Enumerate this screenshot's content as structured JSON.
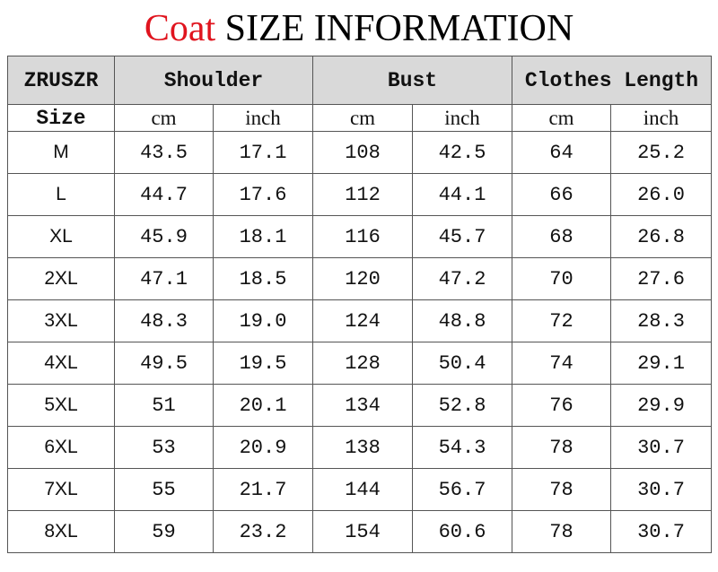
{
  "title": {
    "highlight": "Coat",
    "rest": "SIZE INFORMATION"
  },
  "table": {
    "brand": "ZRUSZR",
    "groups": [
      "Shoulder",
      "Bust",
      "Clothes Length"
    ],
    "size_label": "Size",
    "units": [
      "cm",
      "inch",
      "cm",
      "inch",
      "cm",
      "inch"
    ],
    "rows": [
      [
        "M",
        "43.5",
        "17.1",
        "108",
        "42.5",
        "64",
        "25.2"
      ],
      [
        "L",
        "44.7",
        "17.6",
        "112",
        "44.1",
        "66",
        "26.0"
      ],
      [
        "XL",
        "45.9",
        "18.1",
        "116",
        "45.7",
        "68",
        "26.8"
      ],
      [
        "2XL",
        "47.1",
        "18.5",
        "120",
        "47.2",
        "70",
        "27.6"
      ],
      [
        "3XL",
        "48.3",
        "19.0",
        "124",
        "48.8",
        "72",
        "28.3"
      ],
      [
        "4XL",
        "49.5",
        "19.5",
        "128",
        "50.4",
        "74",
        "29.1"
      ],
      [
        "5XL",
        "51",
        "20.1",
        "134",
        "52.8",
        "76",
        "29.9"
      ],
      [
        "6XL",
        "53",
        "20.9",
        "138",
        "54.3",
        "78",
        "30.7"
      ],
      [
        "7XL",
        "55",
        "21.7",
        "144",
        "56.7",
        "78",
        "30.7"
      ],
      [
        "8XL",
        "59",
        "23.2",
        "154",
        "60.6",
        "78",
        "30.7"
      ]
    ]
  }
}
